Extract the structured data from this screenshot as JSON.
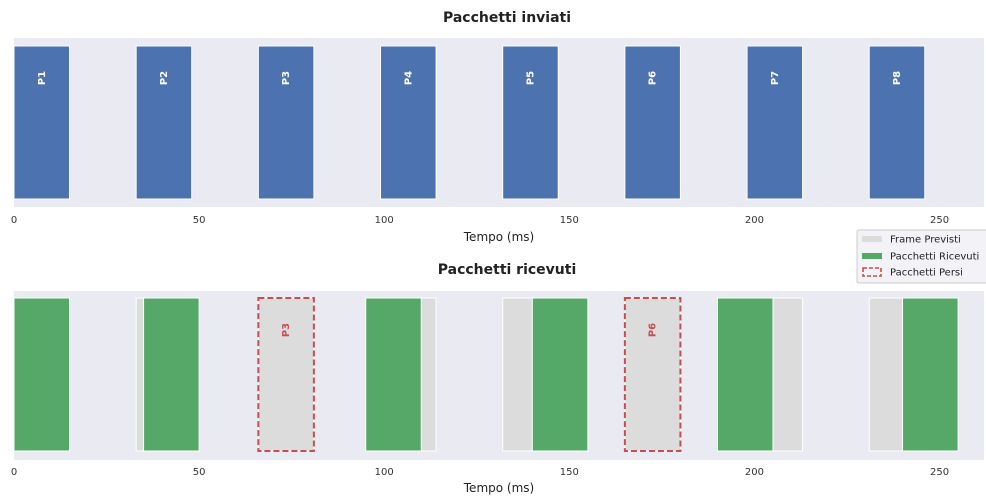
{
  "chart_data": [
    {
      "type": "bar",
      "title": "Pacchetti inviati",
      "xlabel": "Tempo (ms)",
      "ylabel": "",
      "xlim": [
        0,
        262
      ],
      "xticks": [
        0,
        50,
        100,
        150,
        200,
        250
      ],
      "packet_duration_ms": 15,
      "series": [
        {
          "name": "",
          "packets": [
            {
              "label": "P1",
              "start": 0
            },
            {
              "label": "P2",
              "start": 33
            },
            {
              "label": "P3",
              "start": 66
            },
            {
              "label": "P4",
              "start": 99
            },
            {
              "label": "P5",
              "start": 132
            },
            {
              "label": "P6",
              "start": 165
            },
            {
              "label": "P7",
              "start": 198
            },
            {
              "label": "P8",
              "start": 231
            }
          ]
        }
      ],
      "grid": false
    },
    {
      "type": "bar",
      "title": "Pacchetti ricevuti",
      "xlabel": "Tempo (ms)",
      "ylabel": "",
      "xlim": [
        0,
        262
      ],
      "xticks": [
        0,
        50,
        100,
        150,
        200,
        250
      ],
      "frame_duration_ms": 15,
      "legend": {
        "placement": "top-right",
        "entries": [
          "Frame Previsti",
          "Pacchetti Ricevuti",
          "Pacchetti Persi"
        ]
      },
      "series": [
        {
          "name": "Frame Previsti",
          "starts": [
            0,
            33,
            66,
            99,
            132,
            165,
            198,
            231
          ]
        },
        {
          "name": "Pacchetti Ricevuti",
          "starts": [
            0,
            35,
            95,
            140,
            190,
            240
          ]
        },
        {
          "name": "Pacchetti Persi",
          "packets": [
            {
              "label": "P3",
              "start": 66
            },
            {
              "label": "P6",
              "start": 165
            }
          ]
        }
      ],
      "grid": false
    }
  ],
  "colors": {
    "sent": "#4c72b0",
    "received": "#55a868",
    "expected": "#dcdcdc",
    "lost_border": "#c44e52",
    "axes_bg": "#eaeaf2"
  }
}
